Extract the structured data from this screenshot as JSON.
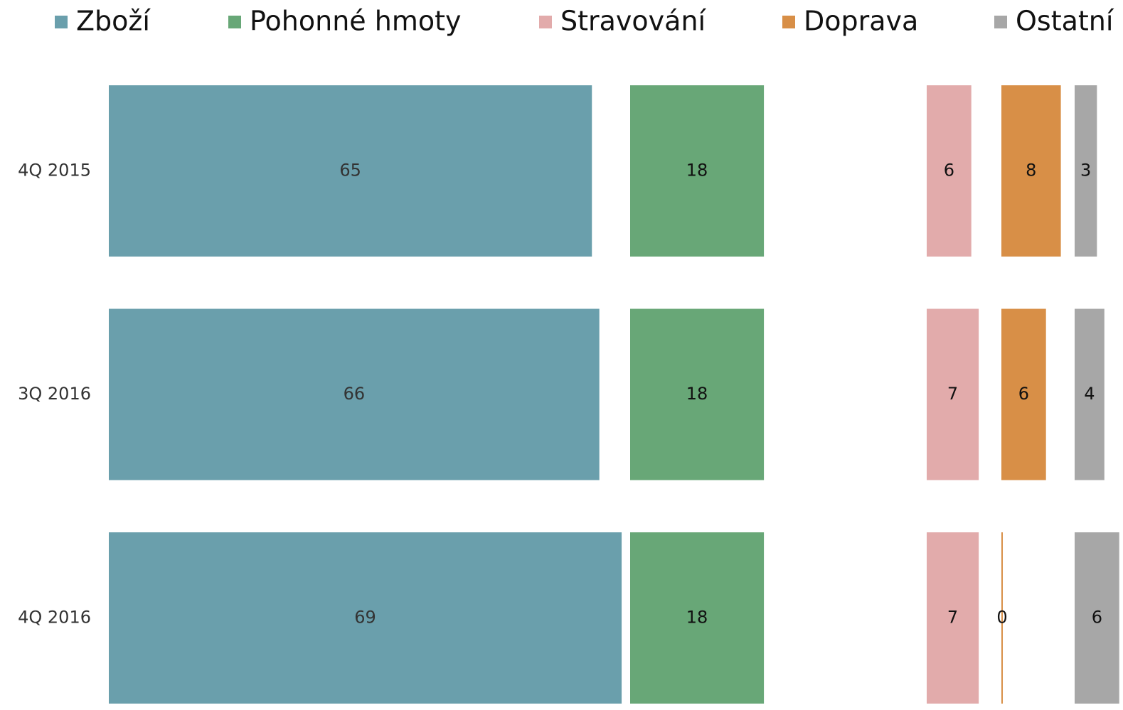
{
  "chart_data": {
    "type": "bar",
    "orientation": "horizontal",
    "layout": "columns",
    "categories": [
      "4Q 2015",
      "3Q 2016",
      "4Q 2016"
    ],
    "series": [
      {
        "name": "Zboží",
        "color": "#6a9fac",
        "values": [
          65,
          66,
          69
        ]
      },
      {
        "name": "Pohonné hmoty",
        "color": "#68a777",
        "values": [
          18,
          18,
          18
        ]
      },
      {
        "name": "Stravování",
        "color": "#e2abab",
        "values": [
          6,
          7,
          7
        ]
      },
      {
        "name": "Doprava",
        "color": "#d88f47",
        "values": [
          8,
          6,
          0
        ]
      },
      {
        "name": "Ostatní",
        "color": "#a7a7a7",
        "values": [
          3,
          4,
          6
        ]
      }
    ],
    "legend": "top"
  }
}
